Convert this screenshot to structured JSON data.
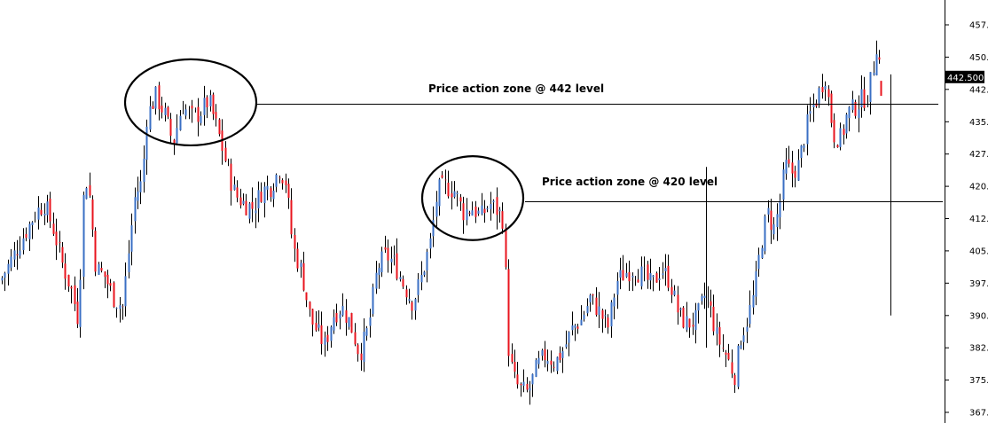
{
  "chart_data": {
    "type": "ohlc",
    "title": "",
    "xlabel": "",
    "ylabel": "",
    "ylim": [
      364,
      462
    ],
    "yticks": [
      "457.",
      "450.",
      "442.",
      "435.",
      "427.",
      "420.",
      "412.",
      "405.",
      "397.",
      "390.",
      "382.",
      "375.",
      "367."
    ],
    "ytick_values": [
      457.5,
      450,
      442.5,
      435,
      427.5,
      420,
      412.5,
      405,
      397.5,
      390,
      382.5,
      375,
      367.5
    ],
    "grid": false,
    "up_color": "#3a6fc4",
    "down_color": "#e8141e",
    "last_price": {
      "value": 442.5,
      "label": "442.500"
    },
    "annotations": [
      {
        "text": "Price action zone @ 442 level",
        "level": 439
      },
      {
        "text": "Price action zone @ 420 level",
        "level": 416.5
      }
    ],
    "zones": [
      {
        "x0": 141,
        "x1": 289,
        "ymin": 429.5,
        "ymax": 449.5
      },
      {
        "x0": 476,
        "x1": 590,
        "ymin": 407.5,
        "ymax": 427
      }
    ],
    "close_path": [
      [
        0,
        398
      ],
      [
        10,
        402
      ],
      [
        20,
        406
      ],
      [
        30,
        410
      ],
      [
        40,
        414
      ],
      [
        50,
        416
      ],
      [
        60,
        410
      ],
      [
        70,
        402
      ],
      [
        80,
        396
      ],
      [
        88,
        389
      ],
      [
        95,
        423
      ],
      [
        100,
        419
      ],
      [
        108,
        401
      ],
      [
        118,
        399
      ],
      [
        128,
        394
      ],
      [
        138,
        392
      ],
      [
        145,
        405
      ],
      [
        152,
        418
      ],
      [
        160,
        421
      ],
      [
        165,
        436
      ],
      [
        175,
        441
      ],
      [
        185,
        437
      ],
      [
        195,
        430
      ],
      [
        205,
        439
      ],
      [
        215,
        436
      ],
      [
        225,
        437
      ],
      [
        235,
        440
      ],
      [
        245,
        433
      ],
      [
        255,
        425
      ],
      [
        265,
        418
      ],
      [
        275,
        416
      ],
      [
        285,
        415
      ],
      [
        295,
        419
      ],
      [
        305,
        420
      ],
      [
        315,
        424
      ],
      [
        322,
        421
      ],
      [
        330,
        406
      ],
      [
        340,
        400
      ],
      [
        350,
        389
      ],
      [
        358,
        386
      ],
      [
        366,
        383
      ],
      [
        375,
        390
      ],
      [
        385,
        392
      ],
      [
        395,
        388
      ],
      [
        405,
        381
      ],
      [
        415,
        387
      ],
      [
        425,
        401
      ],
      [
        435,
        404
      ],
      [
        445,
        402
      ],
      [
        455,
        397
      ],
      [
        465,
        393
      ],
      [
        475,
        399
      ],
      [
        485,
        407
      ],
      [
        493,
        419
      ],
      [
        502,
        420
      ],
      [
        512,
        419
      ],
      [
        522,
        414
      ],
      [
        532,
        415
      ],
      [
        542,
        413
      ],
      [
        552,
        416
      ],
      [
        562,
        414
      ],
      [
        568,
        412
      ],
      [
        572,
        384
      ],
      [
        578,
        376
      ],
      [
        585,
        373
      ],
      [
        595,
        372
      ],
      [
        605,
        378
      ],
      [
        615,
        381
      ],
      [
        625,
        379
      ],
      [
        635,
        382
      ],
      [
        645,
        387
      ],
      [
        655,
        389
      ],
      [
        665,
        394
      ],
      [
        675,
        391
      ],
      [
        685,
        387
      ],
      [
        695,
        398
      ],
      [
        705,
        400
      ],
      [
        715,
        401
      ],
      [
        725,
        399
      ],
      [
        735,
        397
      ],
      [
        745,
        401
      ],
      [
        755,
        398
      ],
      [
        765,
        390
      ],
      [
        775,
        388
      ],
      [
        785,
        389
      ],
      [
        795,
        395
      ],
      [
        800,
        392
      ],
      [
        808,
        385
      ],
      [
        818,
        381
      ],
      [
        828,
        376
      ],
      [
        835,
        385
      ],
      [
        842,
        389
      ],
      [
        850,
        395
      ],
      [
        858,
        407
      ],
      [
        865,
        414
      ],
      [
        872,
        410
      ],
      [
        878,
        415
      ],
      [
        885,
        425
      ],
      [
        892,
        423
      ],
      [
        900,
        425
      ],
      [
        908,
        433
      ],
      [
        915,
        438
      ],
      [
        922,
        441
      ],
      [
        930,
        446
      ],
      [
        935,
        438
      ],
      [
        940,
        432
      ],
      [
        948,
        431
      ],
      [
        955,
        437
      ],
      [
        962,
        438
      ],
      [
        970,
        440
      ],
      [
        978,
        441
      ],
      [
        984,
        447
      ],
      [
        990,
        456
      ],
      [
        993,
        441
      ]
    ],
    "anomalies": [
      {
        "x": 796,
        "high": 424.5,
        "low": 382.5
      },
      {
        "x": 1004,
        "high": 446,
        "low": 390
      }
    ]
  }
}
